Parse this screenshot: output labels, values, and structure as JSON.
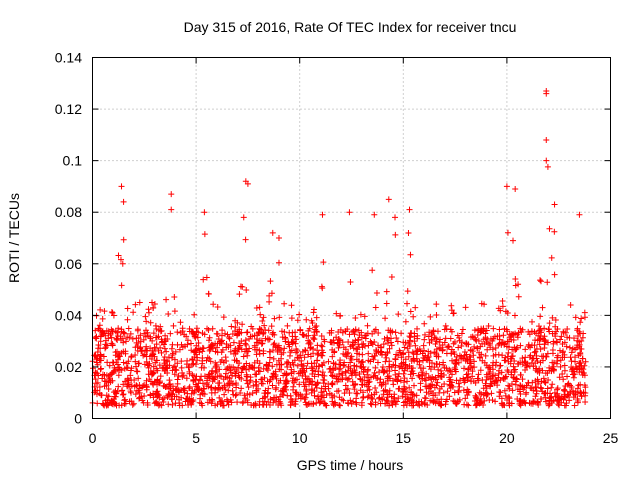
{
  "chart_data": {
    "type": "scatter",
    "title": "Day 315 of 2016, Rate Of TEC Index for receiver tncu",
    "xlabel": "GPS time / hours",
    "ylabel": "ROTI / TECUs",
    "xlim": [
      0,
      25
    ],
    "ylim": [
      0,
      0.14
    ],
    "xticks": [
      0,
      5,
      10,
      15,
      20,
      25
    ],
    "xtick_labels": [
      "0",
      "5",
      "10",
      "15",
      "20",
      "25"
    ],
    "yticks": [
      0,
      0.02,
      0.04,
      0.06,
      0.08,
      0.1,
      0.12,
      0.14
    ],
    "ytick_labels": [
      "0",
      "0.02",
      "0.04",
      "0.06",
      "0.08",
      "0.1",
      "0.12",
      "0.14"
    ],
    "grid": true,
    "marker": "+",
    "color": "#ff0000",
    "series": [
      {
        "name": "ROTI",
        "note": "dense cloud of several thousand points; peaks listed explicitly",
        "time_range_hours": [
          0,
          23.8
        ],
        "typical_range": [
          0.005,
          0.035
        ],
        "peaks": [
          {
            "x": 1.4,
            "y": 0.09
          },
          {
            "x": 1.5,
            "y": 0.084
          },
          {
            "x": 3.8,
            "y": 0.087
          },
          {
            "x": 3.8,
            "y": 0.081
          },
          {
            "x": 5.4,
            "y": 0.08
          },
          {
            "x": 7.4,
            "y": 0.092
          },
          {
            "x": 7.5,
            "y": 0.091
          },
          {
            "x": 7.3,
            "y": 0.078
          },
          {
            "x": 8.7,
            "y": 0.072
          },
          {
            "x": 9.0,
            "y": 0.07
          },
          {
            "x": 11.1,
            "y": 0.079
          },
          {
            "x": 12.4,
            "y": 0.08
          },
          {
            "x": 13.6,
            "y": 0.079
          },
          {
            "x": 14.3,
            "y": 0.085
          },
          {
            "x": 14.6,
            "y": 0.078
          },
          {
            "x": 15.3,
            "y": 0.081
          },
          {
            "x": 20.0,
            "y": 0.09
          },
          {
            "x": 20.4,
            "y": 0.089
          },
          {
            "x": 21.9,
            "y": 0.127
          },
          {
            "x": 21.9,
            "y": 0.126
          },
          {
            "x": 21.9,
            "y": 0.108
          },
          {
            "x": 21.9,
            "y": 0.1
          },
          {
            "x": 22.3,
            "y": 0.083
          },
          {
            "x": 23.5,
            "y": 0.079
          }
        ]
      }
    ]
  }
}
